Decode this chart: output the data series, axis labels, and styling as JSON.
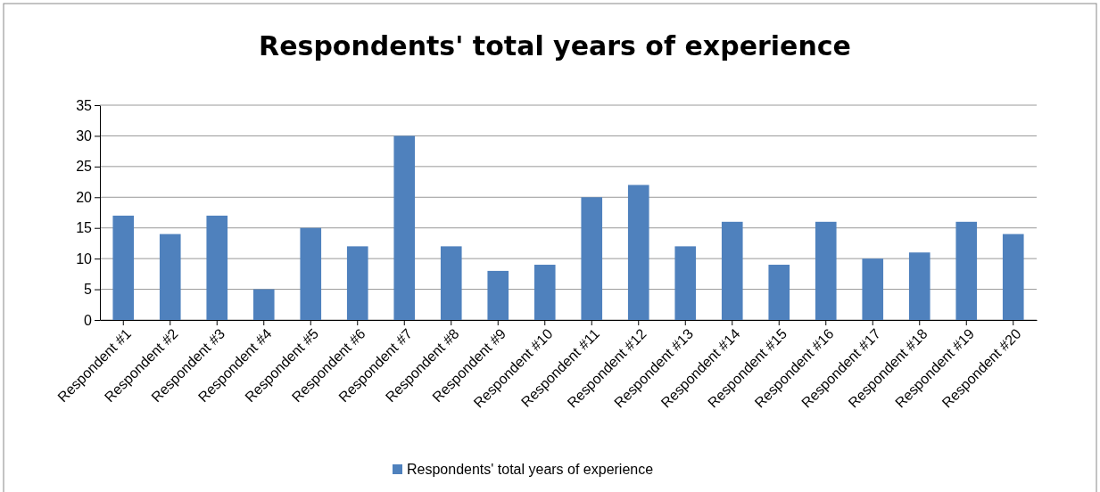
{
  "chart_data": {
    "type": "bar",
    "title": "Respondents' total years of experience",
    "categories": [
      "Respondent #1",
      "Respondent #2",
      "Respondent #3",
      "Respondent #4",
      "Respondent #5",
      "Respondent #6",
      "Respondent #7",
      "Respondent #8",
      "Respondent #9",
      "Respondent #10",
      "Respondent #11",
      "Respondent #12",
      "Respondent #13",
      "Respondent #14",
      "Respondent #15",
      "Respondent #16",
      "Respondent #17",
      "Respondent #18",
      "Respondent #19",
      "Respondent #20"
    ],
    "series": [
      {
        "name": "Respondents' total years of experience",
        "color": "#4f81bd",
        "values": [
          17,
          14,
          17,
          5,
          15,
          12,
          30,
          12,
          8,
          9,
          20,
          22,
          12,
          16,
          9,
          16,
          10,
          11,
          16,
          14
        ]
      }
    ],
    "ylim": [
      0,
      35
    ],
    "yticks": [
      0,
      5,
      10,
      15,
      20,
      25,
      30,
      35
    ],
    "grid": "y",
    "legend": "bottom"
  }
}
